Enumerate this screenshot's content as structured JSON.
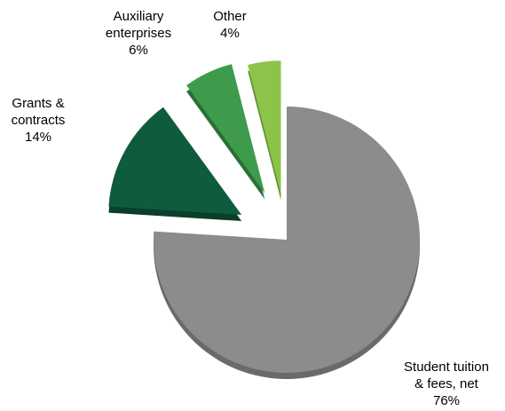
{
  "chart_data": {
    "type": "pie",
    "exploded": true,
    "three_d": true,
    "slices": [
      {
        "name": "Student tuition & fees, net",
        "label_lines": [
          "Student tuition",
          "& fees, net",
          "76%"
        ],
        "value": 76,
        "color": "#8c8c8c",
        "side_color": "#6a6a6a"
      },
      {
        "name": "Grants & contracts",
        "label_lines": [
          "Grants &",
          "contracts",
          "14%"
        ],
        "value": 14,
        "color": "#0f5b3d",
        "side_color": "#0a3f2a"
      },
      {
        "name": "Auxiliary enterprises",
        "label_lines": [
          "Auxiliary",
          "enterprises",
          "6%"
        ],
        "value": 6,
        "color": "#3e9b4c",
        "side_color": "#2a7036"
      },
      {
        "name": "Other",
        "label_lines": [
          "Other",
          "4%"
        ],
        "value": 4,
        "color": "#8cc44a",
        "side_color": "#63923a"
      }
    ]
  }
}
